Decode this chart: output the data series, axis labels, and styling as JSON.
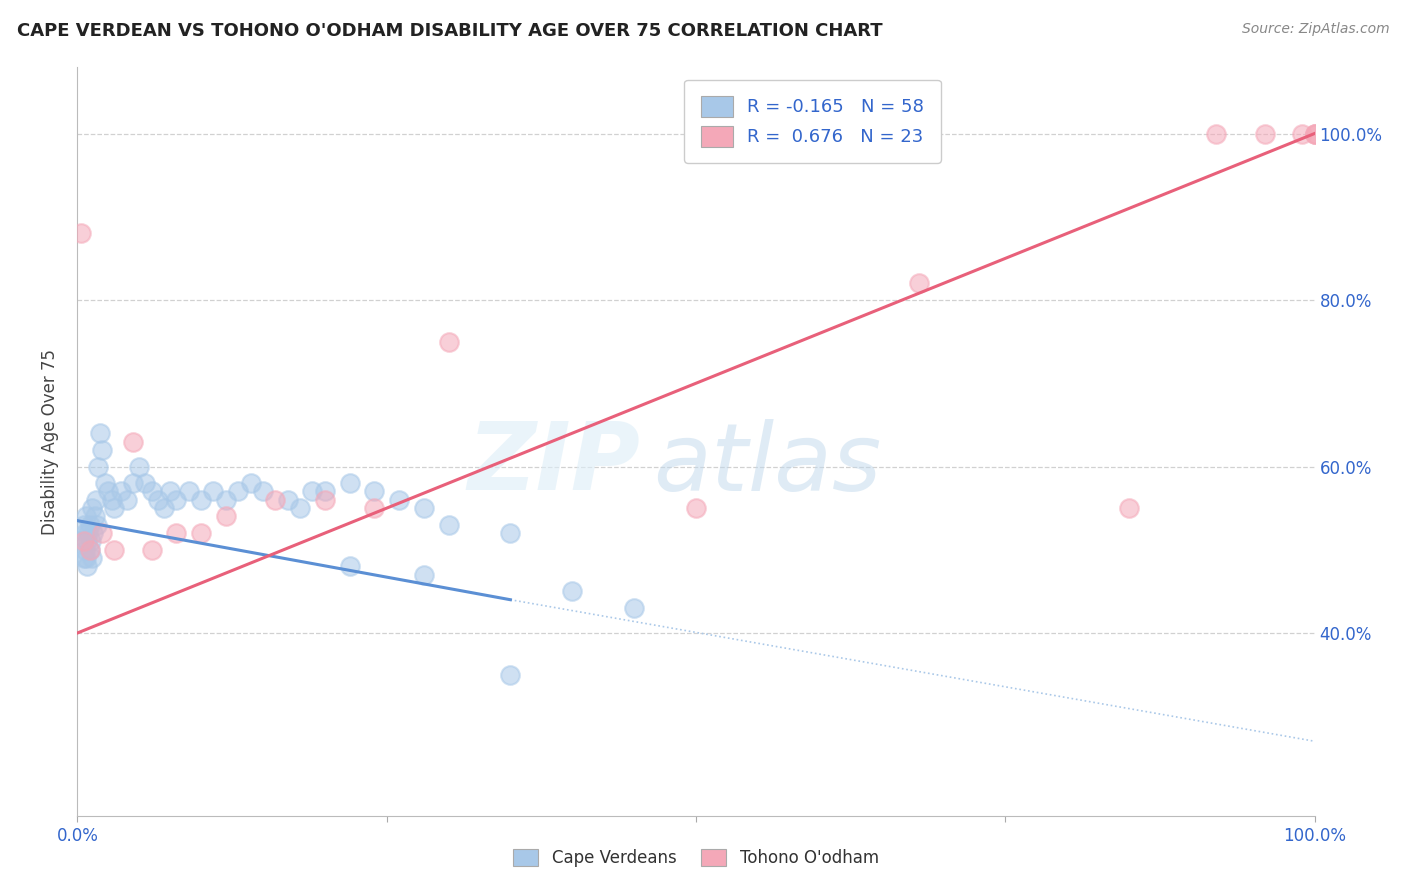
{
  "title": "CAPE VERDEAN VS TOHONO O'ODHAM DISABILITY AGE OVER 75 CORRELATION CHART",
  "source_text": "Source: ZipAtlas.com",
  "ylabel": "Disability Age Over 75",
  "blue_color": "#5b8fd4",
  "pink_color": "#e8607a",
  "blue_scatter_color": "#a8c8e8",
  "pink_scatter_color": "#f4a8b8",
  "background_color": "#ffffff",
  "grid_color": "#cccccc",
  "R_blue": -0.165,
  "N_blue": 58,
  "R_pink": 0.676,
  "N_pink": 23,
  "blue_label": "Cape Verdeans",
  "pink_label": "Tohono O'odham",
  "tick_color": "#3366cc",
  "text_color": "#222222",
  "source_color": "#888888",
  "xlim": [
    0.0,
    100.0
  ],
  "ylim": [
    18.0,
    108.0
  ],
  "blue_scatter_x": [
    0.3,
    0.5,
    0.5,
    0.6,
    0.6,
    0.7,
    0.7,
    0.8,
    0.8,
    0.9,
    1.0,
    1.0,
    1.1,
    1.2,
    1.2,
    1.3,
    1.4,
    1.5,
    1.6,
    1.7,
    1.8,
    2.0,
    2.2,
    2.5,
    2.8,
    3.0,
    3.5,
    4.0,
    4.5,
    5.0,
    5.5,
    6.0,
    6.5,
    7.0,
    7.5,
    8.0,
    9.0,
    10.0,
    11.0,
    12.0,
    13.0,
    14.0,
    15.0,
    17.0,
    18.0,
    19.0,
    20.0,
    22.0,
    24.0,
    26.0,
    28.0,
    30.0,
    35.0,
    40.0,
    45.0,
    22.0,
    28.0,
    35.0
  ],
  "blue_scatter_y": [
    51.0,
    53.0,
    49.0,
    52.0,
    50.0,
    54.0,
    49.0,
    51.0,
    48.0,
    52.0,
    50.0,
    53.0,
    51.0,
    55.0,
    49.0,
    52.0,
    54.0,
    56.0,
    53.0,
    60.0,
    64.0,
    62.0,
    58.0,
    57.0,
    56.0,
    55.0,
    57.0,
    56.0,
    58.0,
    60.0,
    58.0,
    57.0,
    56.0,
    55.0,
    57.0,
    56.0,
    57.0,
    56.0,
    57.0,
    56.0,
    57.0,
    58.0,
    57.0,
    56.0,
    55.0,
    57.0,
    57.0,
    58.0,
    57.0,
    56.0,
    55.0,
    53.0,
    52.0,
    45.0,
    43.0,
    48.0,
    47.0,
    35.0
  ],
  "pink_scatter_x": [
    0.3,
    0.5,
    1.0,
    2.0,
    3.0,
    4.5,
    6.0,
    8.0,
    10.0,
    12.0,
    16.0,
    20.0,
    24.0,
    30.0,
    50.0,
    68.0,
    85.0,
    92.0,
    96.0,
    99.0,
    100.0,
    100.0,
    100.0
  ],
  "pink_scatter_y": [
    88.0,
    51.0,
    50.0,
    52.0,
    50.0,
    63.0,
    50.0,
    52.0,
    52.0,
    54.0,
    56.0,
    56.0,
    55.0,
    75.0,
    55.0,
    82.0,
    55.0,
    100.0,
    100.0,
    100.0,
    100.0,
    100.0,
    100.0
  ],
  "blue_line_x0": 0.0,
  "blue_line_x1": 35.0,
  "blue_line_y0": 53.5,
  "blue_line_y1": 44.0,
  "blue_dash_x0": 35.0,
  "blue_dash_x1": 100.0,
  "blue_dash_y0": 44.0,
  "blue_dash_y1": 27.0,
  "pink_line_x0": 0.0,
  "pink_line_x1": 100.0,
  "pink_line_y0": 40.0,
  "pink_line_y1": 100.0
}
